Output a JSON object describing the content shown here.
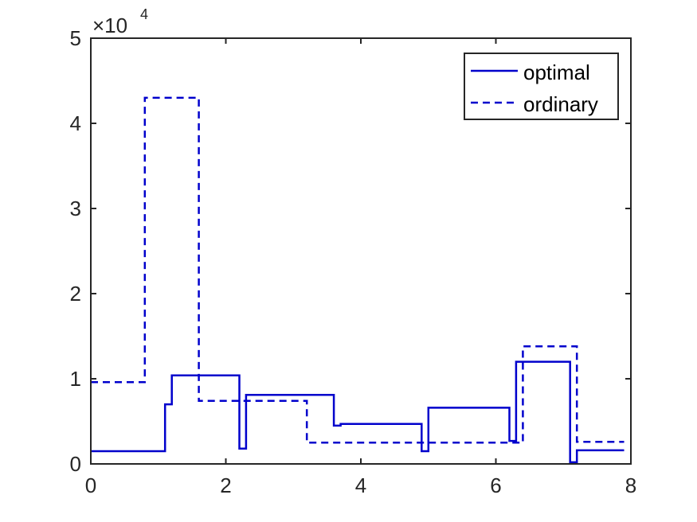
{
  "chart_data": {
    "type": "line",
    "subtype": "step",
    "x_ticks": [
      "0",
      "2",
      "4",
      "6",
      "8"
    ],
    "y_ticks": [
      "0",
      "1",
      "2",
      "3",
      "4",
      "5"
    ],
    "y_exponent_base": "×10",
    "y_exponent_power": "4",
    "xlim": [
      0,
      8
    ],
    "ylim": [
      0,
      50000
    ],
    "grid": false,
    "legend_position": "top-right",
    "color": "#0000CC",
    "series": [
      {
        "name": "optimal",
        "style": "solid",
        "x": [
          0,
          1.1,
          1.1,
          1.2,
          1.2,
          2.2,
          2.2,
          2.3,
          2.3,
          3.6,
          3.6,
          3.7,
          3.7,
          4.9,
          4.9,
          5.0,
          5.0,
          6.2,
          6.2,
          6.3,
          6.3,
          7.1,
          7.1,
          7.2,
          7.2,
          7.9
        ],
        "y": [
          1500,
          1500,
          7000,
          7000,
          10400,
          10400,
          1800,
          1800,
          8100,
          8100,
          4500,
          4500,
          4700,
          4700,
          1500,
          1500,
          6600,
          6600,
          2700,
          2700,
          12000,
          12000,
          200,
          200,
          1600,
          1600
        ]
      },
      {
        "name": "ordinary",
        "style": "dashed",
        "x": [
          0,
          0.8,
          0.8,
          1.6,
          1.6,
          3.2,
          3.2,
          6.4,
          6.4,
          7.2,
          7.2,
          7.9
        ],
        "y": [
          9600,
          9600,
          43000,
          43000,
          7400,
          7400,
          2500,
          2500,
          13800,
          13800,
          2600,
          2600
        ]
      }
    ]
  }
}
